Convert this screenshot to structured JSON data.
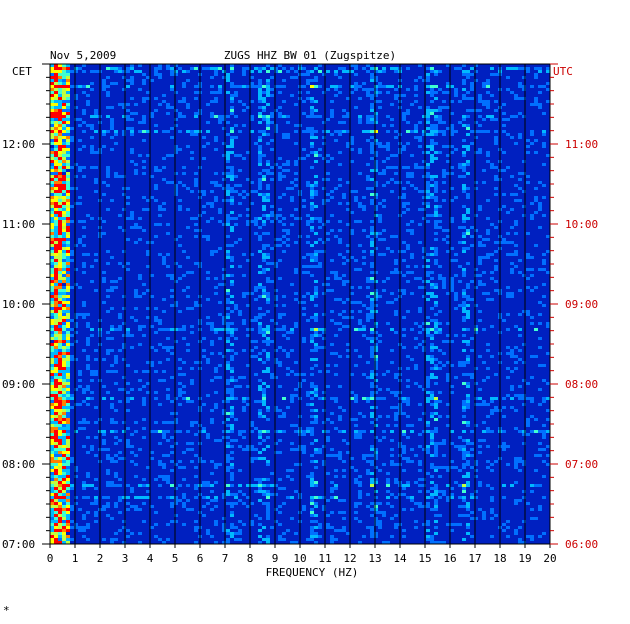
{
  "chart_data": {
    "type": "heatmap",
    "date": "Nov 5,2009",
    "title": "ZUGS HHZ BW 01 (Zugspitze)",
    "xlabel": "FREQUENCY (HZ)",
    "x_ticks": [
      "0",
      "1",
      "2",
      "3",
      "4",
      "5",
      "6",
      "7",
      "8",
      "9",
      "10",
      "11",
      "12",
      "13",
      "14",
      "15",
      "16",
      "17",
      "18",
      "19",
      "20"
    ],
    "xlim": [
      0,
      20
    ],
    "left_axis_label": "CET",
    "right_axis_label": "UTC",
    "left_ticks": [
      "12:00",
      "11:00",
      "10:00",
      "09:00",
      "08:00",
      "07:00"
    ],
    "right_ticks": [
      "11:00",
      "10:00",
      "09:00",
      "08:00",
      "07:00",
      "06:00"
    ],
    "time_range_cet": [
      "07:00",
      "13:00"
    ],
    "grid": true,
    "colors": {
      "background": "#0020c0",
      "low": "#0000a0",
      "mid": "#00c0ff",
      "high": "#ffff00",
      "peak": "#ff0000",
      "utc_label": "#cc0000"
    },
    "bright_lines_hz": [
      0.3,
      7.1,
      8.5,
      10.5,
      12.9,
      15.2,
      16.6
    ],
    "note_mark": "*"
  }
}
